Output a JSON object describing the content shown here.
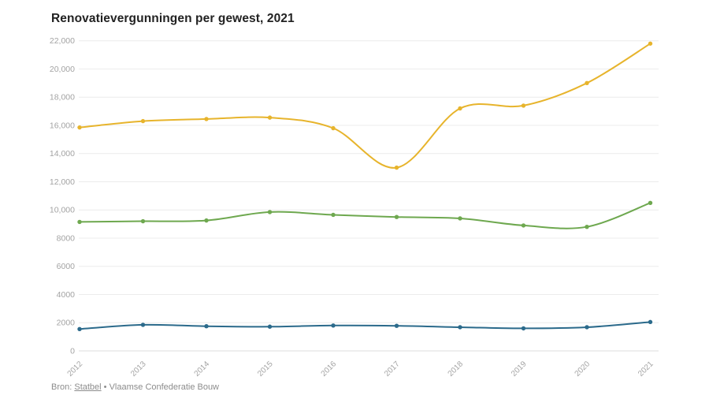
{
  "page": {
    "background_color": "#ffffff"
  },
  "header": {
    "title": "Renovatievergunningen per gewest, 2021"
  },
  "footer": {
    "prefix": "Bron:",
    "source_link": "Statbel",
    "separator": "•",
    "source_text": "Vlaamse Confederatie Bouw"
  },
  "chart_data": {
    "type": "line",
    "title": "Renovatievergunningen per gewest, 2021",
    "xlabel": "",
    "ylabel": "",
    "x": [
      "2012",
      "2013",
      "2014",
      "2015",
      "2016",
      "2017",
      "2018",
      "2019",
      "2020",
      "2021"
    ],
    "series": [
      {
        "name": "yellow-line",
        "color": "#e7b42c",
        "values": [
          15850,
          16300,
          16450,
          16550,
          15800,
          13000,
          17200,
          17400,
          19000,
          21800
        ]
      },
      {
        "name": "green-line",
        "color": "#6ea84f",
        "values": [
          9150,
          9200,
          9250,
          9850,
          9650,
          9500,
          9400,
          8900,
          8800,
          10500
        ]
      },
      {
        "name": "blue-line",
        "color": "#2b6a8b",
        "values": [
          1550,
          1850,
          1750,
          1720,
          1800,
          1780,
          1680,
          1600,
          1680,
          2050
        ]
      }
    ],
    "ylim": [
      0,
      22000
    ],
    "yticks": [
      0,
      2000,
      4000,
      6000,
      8000,
      10000,
      12000,
      14000,
      16000,
      18000,
      20000,
      22000
    ],
    "ytick_labels": [
      "0",
      "2000",
      "4000",
      "6000",
      "8000",
      "10,000",
      "12,000",
      "14,000",
      "16,000",
      "18,000",
      "20,000",
      "22,000"
    ],
    "grid": true,
    "legend": "none",
    "grid_color": "#ececec",
    "baseline_color": "#dddddd",
    "tick_label_color": "#a3a3a3"
  }
}
